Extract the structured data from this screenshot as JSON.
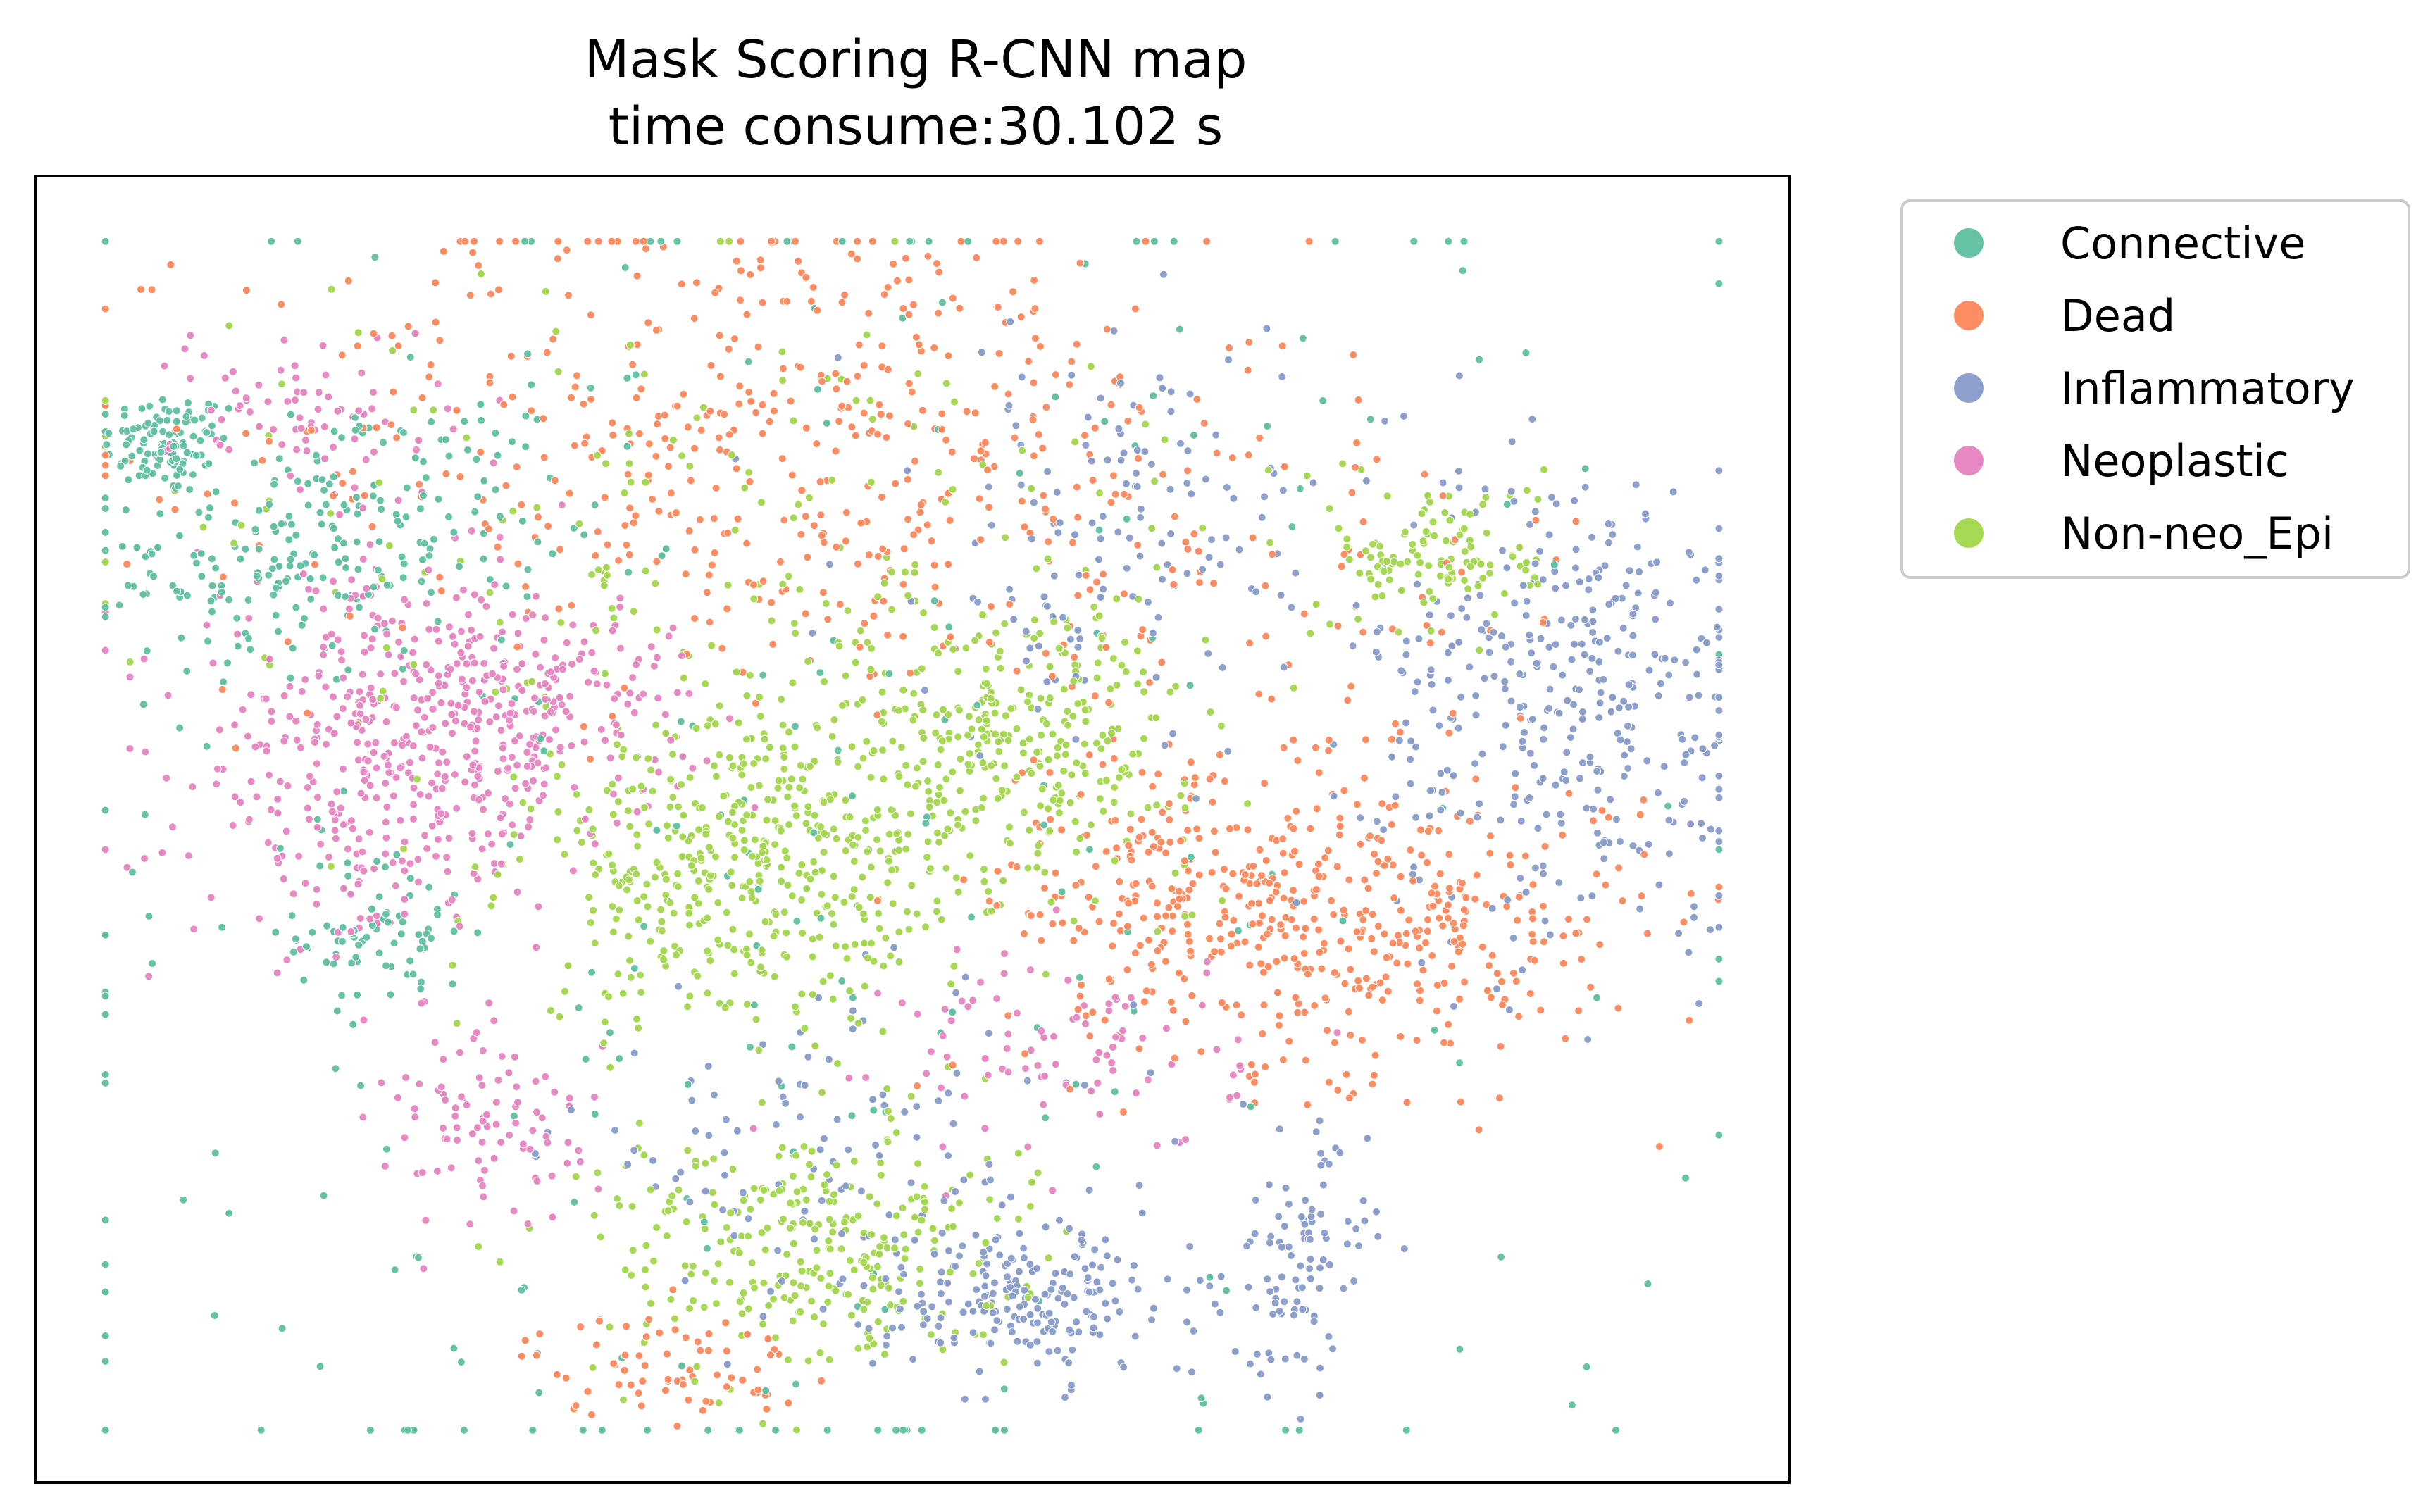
{
  "chart_data": {
    "type": "scatter",
    "title": "Mask Scoring R-CNN map",
    "subtitle": "time consume:30.102 s",
    "xlabel": "",
    "ylabel": "",
    "x_ticks_visible": false,
    "y_ticks_visible": false,
    "xlim": [
      0,
      100
    ],
    "ylim": [
      0,
      100
    ],
    "grid": false,
    "legend_placement": "outside right, top",
    "series": [
      {
        "name": "Connective",
        "color": "#66c2a5",
        "clusters": [
          {
            "center": [
              7.5,
              79.5
            ],
            "spread": [
              1.8,
              2.0
            ],
            "count": 110
          },
          {
            "center": [
              14.0,
              70.0
            ],
            "spread": [
              5.0,
              4.5
            ],
            "count": 160
          },
          {
            "center": [
              20.0,
              42.0
            ],
            "spread": [
              2.5,
              3.0
            ],
            "count": 70
          },
          {
            "center": [
              22.0,
              76.0
            ],
            "spread": [
              5.0,
              4.0
            ],
            "count": 70
          },
          {
            "center": [
              45.0,
              45.0
            ],
            "spread": [
              25.0,
              35.0
            ],
            "count": 260
          }
        ]
      },
      {
        "name": "Dead",
        "color": "#fc8d62",
        "clusters": [
          {
            "center": [
              42.0,
              80.0
            ],
            "spread": [
              15.0,
              10.0
            ],
            "count": 520
          },
          {
            "center": [
              76.0,
              43.0
            ],
            "spread": [
              8.0,
              6.0
            ],
            "count": 360
          },
          {
            "center": [
              66.0,
              46.0
            ],
            "spread": [
              6.0,
              6.0
            ],
            "count": 200
          },
          {
            "center": [
              36.0,
              9.0
            ],
            "spread": [
              4.0,
              2.0
            ],
            "count": 70
          },
          {
            "center": [
              70.0,
              68.0
            ],
            "spread": [
              10.0,
              7.0
            ],
            "count": 60
          }
        ]
      },
      {
        "name": "Inflammatory",
        "color": "#8da0cb",
        "clusters": [
          {
            "center": [
              88.0,
              60.0
            ],
            "spread": [
              6.0,
              9.0
            ],
            "count": 380
          },
          {
            "center": [
              57.0,
              14.0
            ],
            "spread": [
              4.5,
              3.0
            ],
            "count": 200
          },
          {
            "center": [
              72.0,
              17.0
            ],
            "spread": [
              2.0,
              5.0
            ],
            "count": 100
          },
          {
            "center": [
              62.0,
              72.0
            ],
            "spread": [
              8.0,
              8.0
            ],
            "count": 150
          },
          {
            "center": [
              46.0,
              25.0
            ],
            "spread": [
              8.0,
              6.0
            ],
            "count": 120
          }
        ]
      },
      {
        "name": "Neoplastic",
        "color": "#e78ac3",
        "clusters": [
          {
            "center": [
              20.0,
              55.0
            ],
            "spread": [
              5.5,
              7.0
            ],
            "count": 420
          },
          {
            "center": [
              28.0,
              60.0
            ],
            "spread": [
              5.0,
              4.0
            ],
            "count": 200
          },
          {
            "center": [
              16.0,
              82.0
            ],
            "spread": [
              4.0,
              3.5
            ],
            "count": 80
          },
          {
            "center": [
              26.0,
              27.0
            ],
            "spread": [
              3.0,
              4.0
            ],
            "count": 90
          },
          {
            "center": [
              59.0,
              33.0
            ],
            "spread": [
              5.0,
              4.0
            ],
            "count": 90
          }
        ]
      },
      {
        "name": "Non-neo_Epi",
        "color": "#a6d854",
        "clusters": [
          {
            "center": [
              41.0,
              47.0
            ],
            "spread": [
              6.5,
              6.0
            ],
            "count": 480
          },
          {
            "center": [
              56.0,
              57.0
            ],
            "spread": [
              5.0,
              5.0
            ],
            "count": 300
          },
          {
            "center": [
              44.0,
              18.0
            ],
            "spread": [
              6.0,
              5.0
            ],
            "count": 300
          },
          {
            "center": [
              80.0,
              71.0
            ],
            "spread": [
              3.0,
              3.0
            ],
            "count": 120
          },
          {
            "center": [
              40.0,
              70.0
            ],
            "spread": [
              16.0,
              12.0
            ],
            "count": 200
          }
        ]
      }
    ]
  }
}
